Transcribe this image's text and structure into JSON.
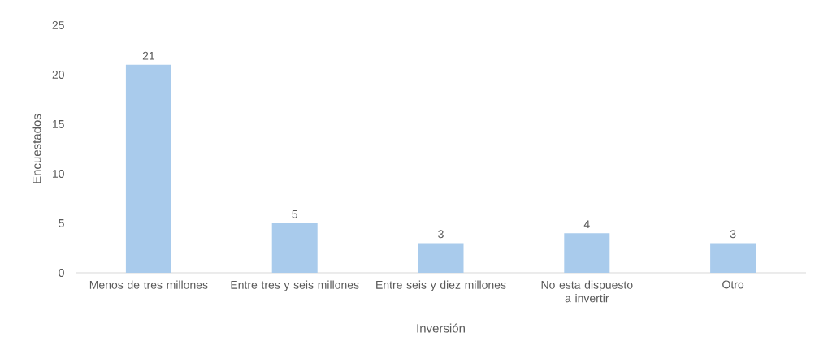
{
  "chart_data": {
    "type": "bar",
    "xlabel": "Inversión",
    "ylabel": "Encuestados",
    "categories": [
      "Menos de tres millones",
      "Entre tres y seis millones",
      "Entre seis y diez millones",
      "No esta dispuesto a invertir",
      "Otro"
    ],
    "values": [
      21,
      5,
      3,
      4,
      3
    ],
    "color": "#a9cbec",
    "ylim": [
      0,
      25
    ],
    "yticks": [
      0,
      5,
      10,
      15,
      20,
      25
    ],
    "data_labels": true,
    "grid": false
  }
}
